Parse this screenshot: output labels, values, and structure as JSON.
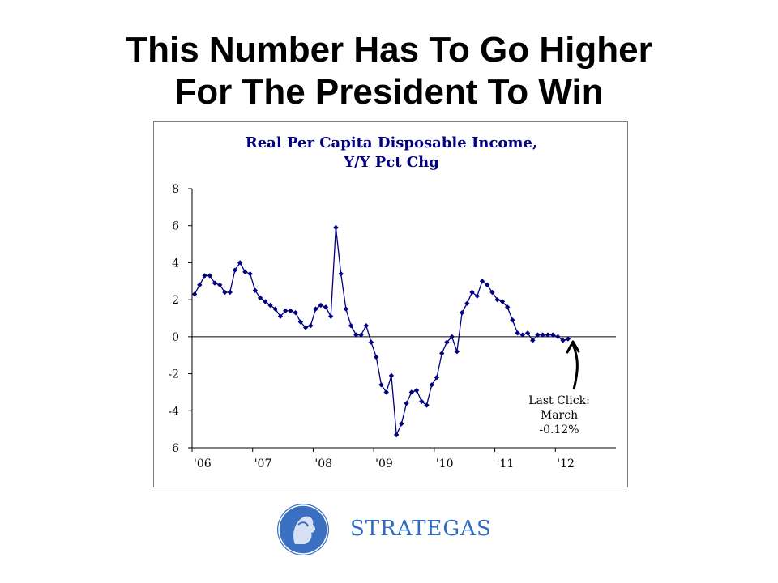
{
  "slide": {
    "title_line1": "This Number Has To Go Higher",
    "title_line2": "For The President To Win"
  },
  "chart_data": {
    "type": "line",
    "title_line1": "Real Per Capita Disposable Income,",
    "title_line2": "Y/Y Pct Chg",
    "xlabel": "",
    "ylabel": "",
    "ylim": [
      -6,
      8
    ],
    "y_ticks": [
      8,
      6,
      4,
      2,
      0,
      -2,
      -4,
      -6
    ],
    "x_tick_labels": [
      "'06",
      "'07",
      "'08",
      "'09",
      "'10",
      "'11",
      "'12"
    ],
    "x_range": [
      "2006-01",
      "2012-12"
    ],
    "grid": false,
    "legend": "none",
    "series_color": "#000080",
    "x": [
      "2006-01",
      "2006-02",
      "2006-03",
      "2006-04",
      "2006-05",
      "2006-06",
      "2006-07",
      "2006-08",
      "2006-09",
      "2006-10",
      "2006-11",
      "2006-12",
      "2007-01",
      "2007-02",
      "2007-03",
      "2007-04",
      "2007-05",
      "2007-06",
      "2007-07",
      "2007-08",
      "2007-09",
      "2007-10",
      "2007-11",
      "2007-12",
      "2008-01",
      "2008-02",
      "2008-03",
      "2008-04",
      "2008-05",
      "2008-06",
      "2008-07",
      "2008-08",
      "2008-09",
      "2008-10",
      "2008-11",
      "2008-12",
      "2009-01",
      "2009-02",
      "2009-03",
      "2009-04",
      "2009-05",
      "2009-06",
      "2009-07",
      "2009-08",
      "2009-09",
      "2009-10",
      "2009-11",
      "2009-12",
      "2010-01",
      "2010-02",
      "2010-03",
      "2010-04",
      "2010-05",
      "2010-06",
      "2010-07",
      "2010-08",
      "2010-09",
      "2010-10",
      "2010-11",
      "2010-12",
      "2011-01",
      "2011-02",
      "2011-03",
      "2011-04",
      "2011-05",
      "2011-06",
      "2011-07",
      "2011-08",
      "2011-09",
      "2011-10",
      "2011-11",
      "2011-12",
      "2012-01",
      "2012-02",
      "2012-03"
    ],
    "values": [
      2.3,
      2.8,
      3.3,
      3.3,
      2.9,
      2.8,
      2.4,
      2.4,
      3.6,
      4.0,
      3.5,
      3.4,
      2.5,
      2.1,
      1.9,
      1.7,
      1.5,
      1.1,
      1.4,
      1.4,
      1.3,
      0.8,
      0.5,
      0.6,
      1.5,
      1.7,
      1.6,
      1.1,
      5.9,
      3.4,
      1.5,
      0.6,
      0.1,
      0.1,
      0.6,
      -0.3,
      -1.1,
      -2.6,
      -3.0,
      -2.1,
      -5.3,
      -4.7,
      -3.6,
      -3.0,
      -2.9,
      -3.5,
      -3.7,
      -2.6,
      -2.2,
      -0.9,
      -0.3,
      0.0,
      -0.8,
      1.3,
      1.8,
      2.4,
      2.2,
      3.0,
      2.8,
      2.4,
      2.0,
      1.9,
      1.6,
      0.9,
      0.2,
      0.1,
      0.2,
      -0.2,
      0.1,
      0.1,
      0.1,
      0.1,
      0.0,
      -0.2,
      -0.12
    ]
  },
  "annotation": {
    "line1": "Last Click:",
    "line2": "March",
    "line3": "-0.12%"
  },
  "logo": {
    "name": "STRATEGAS",
    "color": "#2f6cc4"
  }
}
